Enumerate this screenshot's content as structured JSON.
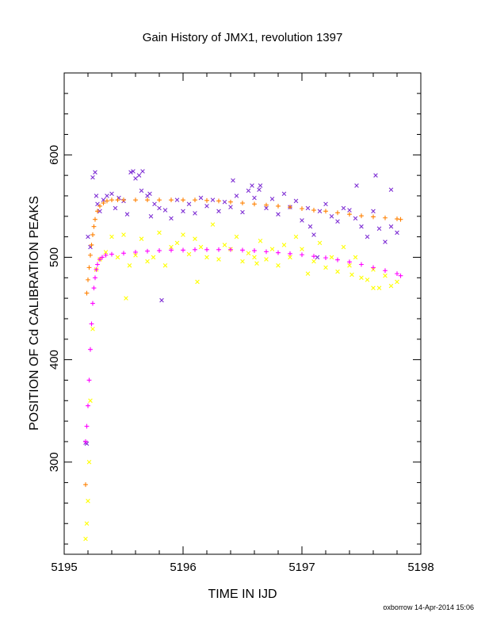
{
  "chart_data": {
    "type": "scatter",
    "title": "Gain History of JMX1, revolution 1397",
    "xlabel": "TIME IN IJD",
    "ylabel": "POSITION OF Cd CALIBRATION PEAKS",
    "xlim": [
      5195,
      5198
    ],
    "ylim": [
      210,
      680
    ],
    "xticks": [
      5195,
      5196,
      5197,
      5198
    ],
    "yticks": [
      300,
      400,
      500,
      600
    ],
    "grid": false,
    "legend": "none",
    "series": [
      {
        "marker": "x",
        "color": "#7f2fd4",
        "x": [
          5195.18,
          5195.19,
          5195.2,
          5195.22,
          5195.24,
          5195.26,
          5195.27,
          5195.28,
          5195.3,
          5195.33,
          5195.36,
          5195.4,
          5195.43,
          5195.46,
          5195.5,
          5195.53,
          5195.56,
          5195.58,
          5195.6,
          5195.63,
          5195.66,
          5195.7,
          5195.73,
          5195.76,
          5195.8,
          5195.85,
          5195.9,
          5195.95,
          5196.0,
          5196.05,
          5196.1,
          5196.15,
          5196.2,
          5196.25,
          5196.3,
          5196.35,
          5196.4,
          5196.45,
          5196.5,
          5196.55,
          5196.6,
          5196.65,
          5196.7,
          5196.75,
          5196.8,
          5196.85,
          5196.9,
          5196.95,
          5197.0,
          5197.05,
          5197.1,
          5197.15,
          5197.2,
          5197.25,
          5197.3,
          5197.35,
          5197.4,
          5197.45,
          5197.5,
          5197.55,
          5197.6,
          5197.65,
          5197.7,
          5197.75,
          5197.8,
          5195.65,
          5195.72,
          5196.42,
          5196.58,
          5196.64,
          5197.07,
          5197.46,
          5197.62,
          5197.75,
          5197.13,
          5195.82
        ],
        "y": [
          319,
          318,
          520,
          510,
          578,
          583,
          560,
          552,
          545,
          556,
          560,
          562,
          548,
          558,
          555,
          542,
          583,
          584,
          577,
          580,
          584,
          560,
          540,
          552,
          548,
          546,
          538,
          556,
          545,
          552,
          543,
          558,
          550,
          556,
          545,
          554,
          549,
          560,
          544,
          565,
          558,
          570,
          548,
          557,
          542,
          562,
          549,
          555,
          536,
          548,
          522,
          545,
          552,
          540,
          535,
          548,
          546,
          538,
          530,
          520,
          545,
          528,
          515,
          530,
          524,
          565,
          562,
          575,
          570,
          566,
          530,
          570,
          580,
          566,
          500,
          458
        ]
      },
      {
        "marker": "x",
        "color": "#ffff00",
        "x": [
          5195.18,
          5195.19,
          5195.2,
          5195.21,
          5195.22,
          5195.24,
          5195.27,
          5195.3,
          5195.35,
          5195.4,
          5195.45,
          5195.5,
          5195.55,
          5195.6,
          5195.65,
          5195.7,
          5195.75,
          5195.8,
          5195.85,
          5195.9,
          5195.95,
          5196.0,
          5196.05,
          5196.1,
          5196.15,
          5196.2,
          5196.25,
          5196.3,
          5196.35,
          5196.4,
          5196.45,
          5196.5,
          5196.55,
          5196.6,
          5196.65,
          5196.7,
          5196.75,
          5196.8,
          5196.85,
          5196.9,
          5196.95,
          5197.0,
          5197.05,
          5197.1,
          5197.15,
          5197.2,
          5197.25,
          5197.3,
          5197.35,
          5197.4,
          5197.45,
          5197.5,
          5197.55,
          5197.6,
          5197.65,
          5197.7,
          5197.75,
          5197.8,
          5195.52,
          5196.12,
          5196.62,
          5197.42,
          5197.6
        ],
        "y": [
          225,
          240,
          262,
          300,
          360,
          430,
          488,
          498,
          505,
          520,
          500,
          522,
          492,
          502,
          518,
          496,
          500,
          524,
          492,
          510,
          514,
          522,
          503,
          518,
          510,
          500,
          532,
          498,
          512,
          508,
          520,
          496,
          504,
          500,
          516,
          498,
          508,
          492,
          512,
          500,
          520,
          508,
          484,
          496,
          514,
          490,
          500,
          486,
          510,
          492,
          500,
          480,
          478,
          488,
          470,
          482,
          472,
          476,
          460,
          476,
          494,
          483,
          470
        ]
      },
      {
        "marker": "+",
        "color": "#ff8000",
        "x": [
          5195.18,
          5195.19,
          5195.2,
          5195.21,
          5195.22,
          5195.23,
          5195.24,
          5195.25,
          5195.26,
          5195.28,
          5195.3,
          5195.33,
          5195.36,
          5195.4,
          5195.45,
          5195.5,
          5195.6,
          5195.7,
          5195.8,
          5195.9,
          5196.0,
          5196.1,
          5196.2,
          5196.3,
          5196.4,
          5196.5,
          5196.6,
          5196.7,
          5196.8,
          5196.9,
          5197.0,
          5197.1,
          5197.2,
          5197.3,
          5197.4,
          5197.5,
          5197.6,
          5197.7,
          5197.8,
          5197.83
        ],
        "y": [
          278,
          465,
          478,
          490,
          502,
          512,
          522,
          530,
          537,
          545,
          550,
          553,
          555,
          556,
          556,
          556,
          556,
          556,
          556,
          556,
          556,
          556,
          555.5,
          555,
          554,
          553,
          552,
          551,
          550,
          549,
          547.5,
          546,
          545,
          543.5,
          542,
          540.5,
          539.5,
          538.5,
          537.5,
          537
        ]
      },
      {
        "marker": "+",
        "color": "#ff00ff",
        "x": [
          5195.18,
          5195.19,
          5195.2,
          5195.21,
          5195.22,
          5195.23,
          5195.24,
          5195.25,
          5195.26,
          5195.27,
          5195.28,
          5195.3,
          5195.32,
          5195.35,
          5195.4,
          5195.5,
          5195.6,
          5195.7,
          5195.8,
          5195.9,
          5196.0,
          5196.1,
          5196.2,
          5196.3,
          5196.4,
          5196.5,
          5196.6,
          5196.7,
          5196.8,
          5196.9,
          5197.0,
          5197.1,
          5197.2,
          5197.3,
          5197.4,
          5197.5,
          5197.6,
          5197.7,
          5197.8,
          5197.83
        ],
        "y": [
          320,
          335,
          355,
          380,
          410,
          435,
          455,
          470,
          480,
          488,
          493,
          498,
          500,
          502,
          503,
          504,
          505,
          506,
          506.5,
          507,
          507,
          507.5,
          507.5,
          507.5,
          507.5,
          507,
          506.5,
          505.5,
          504.5,
          503.5,
          502.5,
          501,
          499.5,
          497.5,
          495.5,
          493,
          490,
          487,
          484,
          482
        ]
      }
    ]
  },
  "footer": {
    "credit": "oxborrow 14-Apr-2014 15:06"
  }
}
